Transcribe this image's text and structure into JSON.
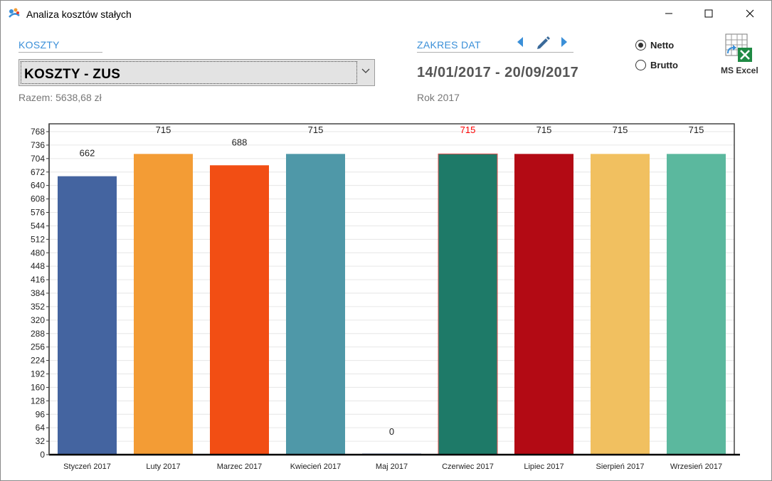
{
  "window": {
    "title": "Analiza kosztów stałych"
  },
  "costs": {
    "label": "KOSZTY",
    "selected": "KOSZTY - ZUS",
    "total": "Razem: 5638,68 zł"
  },
  "dates": {
    "label": "ZAKRES DAT",
    "range": "14/01/2017 - 20/09/2017",
    "period": "Rok 2017"
  },
  "mode": {
    "netto_label": "Netto",
    "brutto_label": "Brutto",
    "selected": "Netto"
  },
  "export": {
    "excel_label": "MS Excel"
  },
  "colors": {
    "accent": "#3a8fd8",
    "highlight_label": "#ff0000"
  },
  "icons": [
    "app-icon",
    "minimize-icon",
    "maximize-icon",
    "close-icon",
    "chevron-down-icon",
    "arrow-left-icon",
    "pencil-icon",
    "arrow-right-icon",
    "excel-icon"
  ],
  "chart_data": {
    "type": "bar",
    "categories": [
      "Styczeń 2017",
      "Luty 2017",
      "Marzec 2017",
      "Kwiecień 2017",
      "Maj 2017",
      "Czerwiec 2017",
      "Lipiec 2017",
      "Sierpień 2017",
      "Wrzesień 2017"
    ],
    "values": [
      662,
      715,
      688,
      715,
      0,
      715,
      715,
      715,
      715
    ],
    "data_labels": [
      "662",
      "715",
      "688",
      "715",
      "0",
      "715",
      "715",
      "715",
      "715"
    ],
    "bar_colors": [
      "#4464a0",
      "#f39c35",
      "#f24e14",
      "#4f98a8",
      "#4464a0",
      "#1e7a68",
      "#b30a14",
      "#f1c060",
      "#5bb89e"
    ],
    "highlighted_index": 5,
    "ylim": [
      0,
      768
    ],
    "yticks": [
      0,
      32,
      64,
      96,
      128,
      160,
      192,
      224,
      256,
      288,
      320,
      352,
      384,
      416,
      448,
      480,
      512,
      544,
      576,
      608,
      640,
      672,
      704,
      736,
      768
    ],
    "grid": true,
    "title": "",
    "xlabel": "",
    "ylabel": ""
  }
}
